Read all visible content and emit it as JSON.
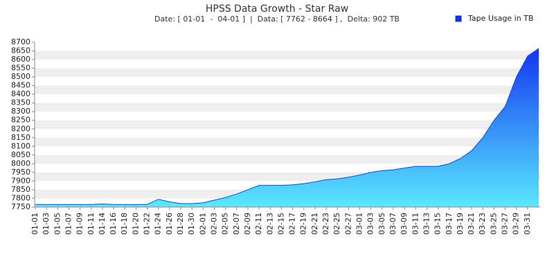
{
  "chart_data": {
    "type": "area",
    "title": "HPSS Data Growth - Star Raw",
    "subtitle": "Date: [ 01-01  -  04-01 ]  |  Data: [ 7762 - 8664 ] ,  Delta: 902 TB",
    "categories": [
      "01-01",
      "01-03",
      "01-05",
      "01-07",
      "01-09",
      "01-11",
      "01-14",
      "01-16",
      "01-18",
      "01-20",
      "01-22",
      "01-24",
      "01-26",
      "01-28",
      "01-30",
      "02-01",
      "02-03",
      "02-05",
      "02-07",
      "02-09",
      "02-11",
      "02-13",
      "02-15",
      "02-17",
      "02-19",
      "02-21",
      "02-23",
      "02-25",
      "02-27",
      "03-01",
      "03-03",
      "03-05",
      "03-07",
      "03-09",
      "03-11",
      "03-13",
      "03-15",
      "03-17",
      "03-19",
      "03-21",
      "03-23",
      "03-25",
      "03-27",
      "03-29",
      "03-31",
      null
    ],
    "series": [
      {
        "name": "Tape Usage in TB",
        "color": "#1030f0",
        "color_bottom": "#5ae8ff",
        "values": [
          7765,
          7765,
          7765,
          7765,
          7765,
          7765,
          7768,
          7765,
          7765,
          7765,
          7765,
          7795,
          7780,
          7770,
          7770,
          7775,
          7790,
          7805,
          7825,
          7850,
          7875,
          7875,
          7875,
          7878,
          7885,
          7895,
          7908,
          7912,
          7922,
          7935,
          7950,
          7960,
          7965,
          7975,
          7985,
          7985,
          7985,
          8000,
          8030,
          8075,
          8150,
          8250,
          8330,
          8500,
          8620,
          8664
        ]
      }
    ],
    "ylim": [
      7750,
      8700
    ],
    "yticks": [
      7750,
      7800,
      7850,
      7900,
      7950,
      8000,
      8050,
      8100,
      8150,
      8200,
      8250,
      8300,
      8350,
      8400,
      8450,
      8500,
      8550,
      8600,
      8650,
      8700
    ],
    "grid": "bands",
    "legend": "top-right"
  }
}
